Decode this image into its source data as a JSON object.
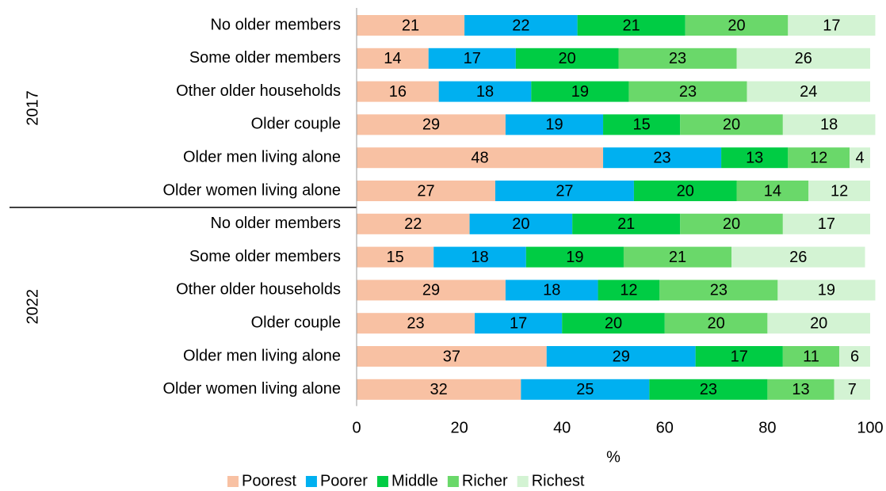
{
  "chart_data": {
    "type": "stacked_bar_horizontal",
    "groups": [
      {
        "name": "2017",
        "categories": [
          "No older members",
          "Some older members",
          "Other older households",
          "Older couple",
          "Older men living alone",
          "Older women living alone"
        ]
      },
      {
        "name": "2022",
        "categories": [
          "No older members",
          "Some older members",
          "Other older households",
          "Older couple",
          "Older men living alone",
          "Older women living alone"
        ]
      }
    ],
    "series": [
      {
        "name": "Poorest",
        "color": "#f8c1a3",
        "values": [
          [
            21,
            14,
            16,
            29,
            48,
            27
          ],
          [
            22,
            15,
            29,
            23,
            37,
            32
          ]
        ]
      },
      {
        "name": "Poorer",
        "color": "#00b0f0",
        "values": [
          [
            22,
            17,
            18,
            19,
            23,
            27
          ],
          [
            20,
            18,
            18,
            17,
            29,
            25
          ]
        ]
      },
      {
        "name": "Middle",
        "color": "#00cc44",
        "values": [
          [
            21,
            20,
            19,
            15,
            13,
            20
          ],
          [
            21,
            19,
            12,
            20,
            17,
            23
          ]
        ]
      },
      {
        "name": "Richer",
        "color": "#6ad86a",
        "values": [
          [
            20,
            23,
            23,
            20,
            12,
            14
          ],
          [
            20,
            21,
            23,
            20,
            11,
            13
          ]
        ]
      },
      {
        "name": "Richest",
        "color": "#d3f3d3",
        "values": [
          [
            17,
            26,
            24,
            18,
            4,
            12
          ],
          [
            17,
            26,
            19,
            20,
            6,
            7
          ]
        ]
      }
    ],
    "x_label": "%",
    "xlim": [
      0,
      100
    ],
    "xticks": [
      0,
      20,
      40,
      60,
      80,
      100
    ],
    "legend": "bottom"
  }
}
